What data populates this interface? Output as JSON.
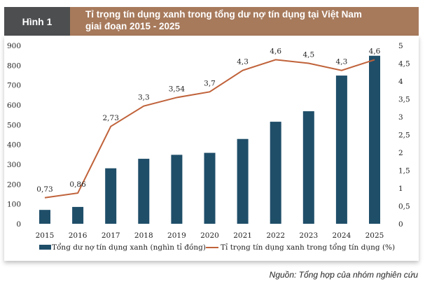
{
  "header": {
    "figure_label": "Hình 1",
    "title_line1": "Tỉ trọng tín dụng xanh trong tổng dư nợ tín dụng tại Việt Nam",
    "title_line2": "giai đoạn 2015 - 2025"
  },
  "source": "Nguồn: Tổng hợp của nhóm nghiên cứu",
  "chart_data": {
    "type": "bar+line",
    "categories": [
      "2015",
      "2016",
      "2017",
      "2018",
      "2019",
      "2020",
      "2021",
      "2022",
      "2023",
      "2024",
      "2025"
    ],
    "series": [
      {
        "name": "Tổng dư nợ tín dụng xanh (nghìn tỉ đồng)",
        "type": "bar",
        "axis": "left",
        "color": "#1f4e69",
        "values": [
          70,
          85,
          280,
          328,
          348,
          358,
          428,
          515,
          568,
          748,
          848
        ]
      },
      {
        "name": "Tỉ trọng tín dụng xanh trong tổng tín dụng (%)",
        "type": "line",
        "axis": "right",
        "color": "#c0623a",
        "values": [
          0.73,
          0.86,
          2.73,
          3.3,
          3.54,
          3.7,
          4.3,
          4.6,
          4.5,
          4.3,
          4.6
        ],
        "labels": [
          "0,73",
          "0,86",
          "2,73",
          "3,3",
          "3,54",
          "3,7",
          "4,3",
          "4,6",
          "4,5",
          "4,3",
          "4,6"
        ]
      }
    ],
    "ylim_left": [
      0,
      900
    ],
    "yticks_left": [
      "0",
      "100",
      "200",
      "300",
      "400",
      "500",
      "600",
      "700",
      "800",
      "900"
    ],
    "ylim_right": [
      0,
      5
    ],
    "yticks_right": [
      "0",
      "0,5",
      "1",
      "1,5",
      "2",
      "2,5",
      "3",
      "3,5",
      "4",
      "4,5",
      "5"
    ],
    "grid": false,
    "legend": "bottom"
  }
}
